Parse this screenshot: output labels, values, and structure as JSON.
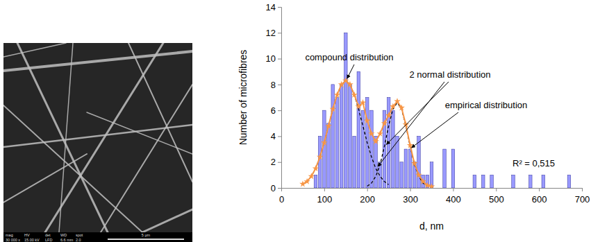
{
  "chart_data": {
    "type": "histogram",
    "name": "empirical distribution",
    "color": "#9999ff",
    "x_label": "d, nm",
    "y_label": "Number of microfibres",
    "bins": [
      75,
      85,
      95,
      105,
      115,
      125,
      135,
      145,
      155,
      165,
      175,
      185,
      195,
      205,
      215,
      225,
      235,
      245,
      255,
      265,
      275,
      285,
      295,
      305,
      315,
      325,
      335,
      345,
      355,
      365,
      375,
      385,
      395,
      405,
      415,
      425,
      435,
      445,
      455,
      465,
      475,
      485,
      495,
      505,
      515,
      525,
      535,
      545,
      555,
      565,
      575,
      585,
      595,
      605,
      615,
      625,
      635,
      645,
      655,
      665,
      675
    ],
    "counts": [
      1,
      4,
      6,
      5,
      8,
      7,
      8,
      12,
      8,
      4,
      9,
      6,
      7,
      6,
      4,
      2,
      6,
      7,
      6,
      4,
      2,
      3,
      3,
      2,
      4,
      1,
      1,
      2,
      0,
      0,
      3,
      0,
      3,
      0,
      0,
      0,
      0,
      1,
      0,
      1,
      0,
      1,
      0,
      0,
      0,
      0,
      1,
      0,
      0,
      0,
      1,
      0,
      0,
      1,
      0,
      0,
      0,
      0,
      0,
      1
    ],
    "series": [
      {
        "name": "compound distribution",
        "type": "line",
        "color": "#f79646",
        "marker": "star",
        "line_style": "solid",
        "x": [
          50,
          60,
          70,
          80,
          90,
          100,
          110,
          120,
          130,
          140,
          150,
          160,
          170,
          180,
          190,
          200,
          210,
          220,
          230,
          240,
          250,
          260,
          270,
          280,
          290,
          300,
          310,
          320,
          330,
          340,
          350
        ],
        "values": [
          0.3,
          0.5,
          0.9,
          1.5,
          2.4,
          3.5,
          4.8,
          6.1,
          7.2,
          8.0,
          8.3,
          8.0,
          7.2,
          6.3,
          6.6,
          5.2,
          4.2,
          3.6,
          4.2,
          5.0,
          5.6,
          6.3,
          6.7,
          6.2,
          4.9,
          3.3,
          1.9,
          1.0,
          0.5,
          0.2,
          0.1
        ]
      },
      {
        "type": "line",
        "color": "#000000",
        "line_style": "dashed",
        "x": [
          50,
          60,
          70,
          80,
          90,
          100,
          110,
          120,
          130,
          140,
          150,
          160,
          170,
          180,
          190,
          200,
          210,
          220,
          230,
          240,
          250
        ],
        "values": [
          0.26,
          0.5,
          0.9,
          1.5,
          2.4,
          3.5,
          4.8,
          6.1,
          7.2,
          8.0,
          8.3,
          8.0,
          7.2,
          6.1,
          4.8,
          3.5,
          2.4,
          1.5,
          0.9,
          0.5,
          0.26
        ]
      },
      {
        "type": "line",
        "color": "#000000",
        "line_style": "dashed",
        "x": [
          200,
          210,
          220,
          230,
          240,
          250,
          260,
          270,
          280,
          290,
          300,
          310,
          320,
          330,
          340
        ],
        "values": [
          0.13,
          0.37,
          0.9,
          1.8,
          3.2,
          4.8,
          6.1,
          6.6,
          6.1,
          4.8,
          3.2,
          1.8,
          0.9,
          0.37,
          0.13
        ]
      }
    ],
    "annotations": [
      "2 normal distribution",
      "R² = 0,515"
    ],
    "xlim": [
      0,
      700
    ],
    "xticks": [
      0,
      100,
      200,
      300,
      400,
      500,
      600,
      700
    ],
    "ylim": [
      0,
      14
    ],
    "yticks": [
      0,
      2,
      4,
      6,
      8,
      10,
      12,
      14
    ],
    "grid": false
  },
  "micrograph": {
    "info_headers": [
      "mag",
      "HV",
      "det",
      "WD",
      "spot"
    ],
    "info_values": [
      "30 000 x",
      "15.00 kV",
      "LFD",
      "6.6 mm",
      "2.0"
    ],
    "scale_bar": "5 µm"
  }
}
